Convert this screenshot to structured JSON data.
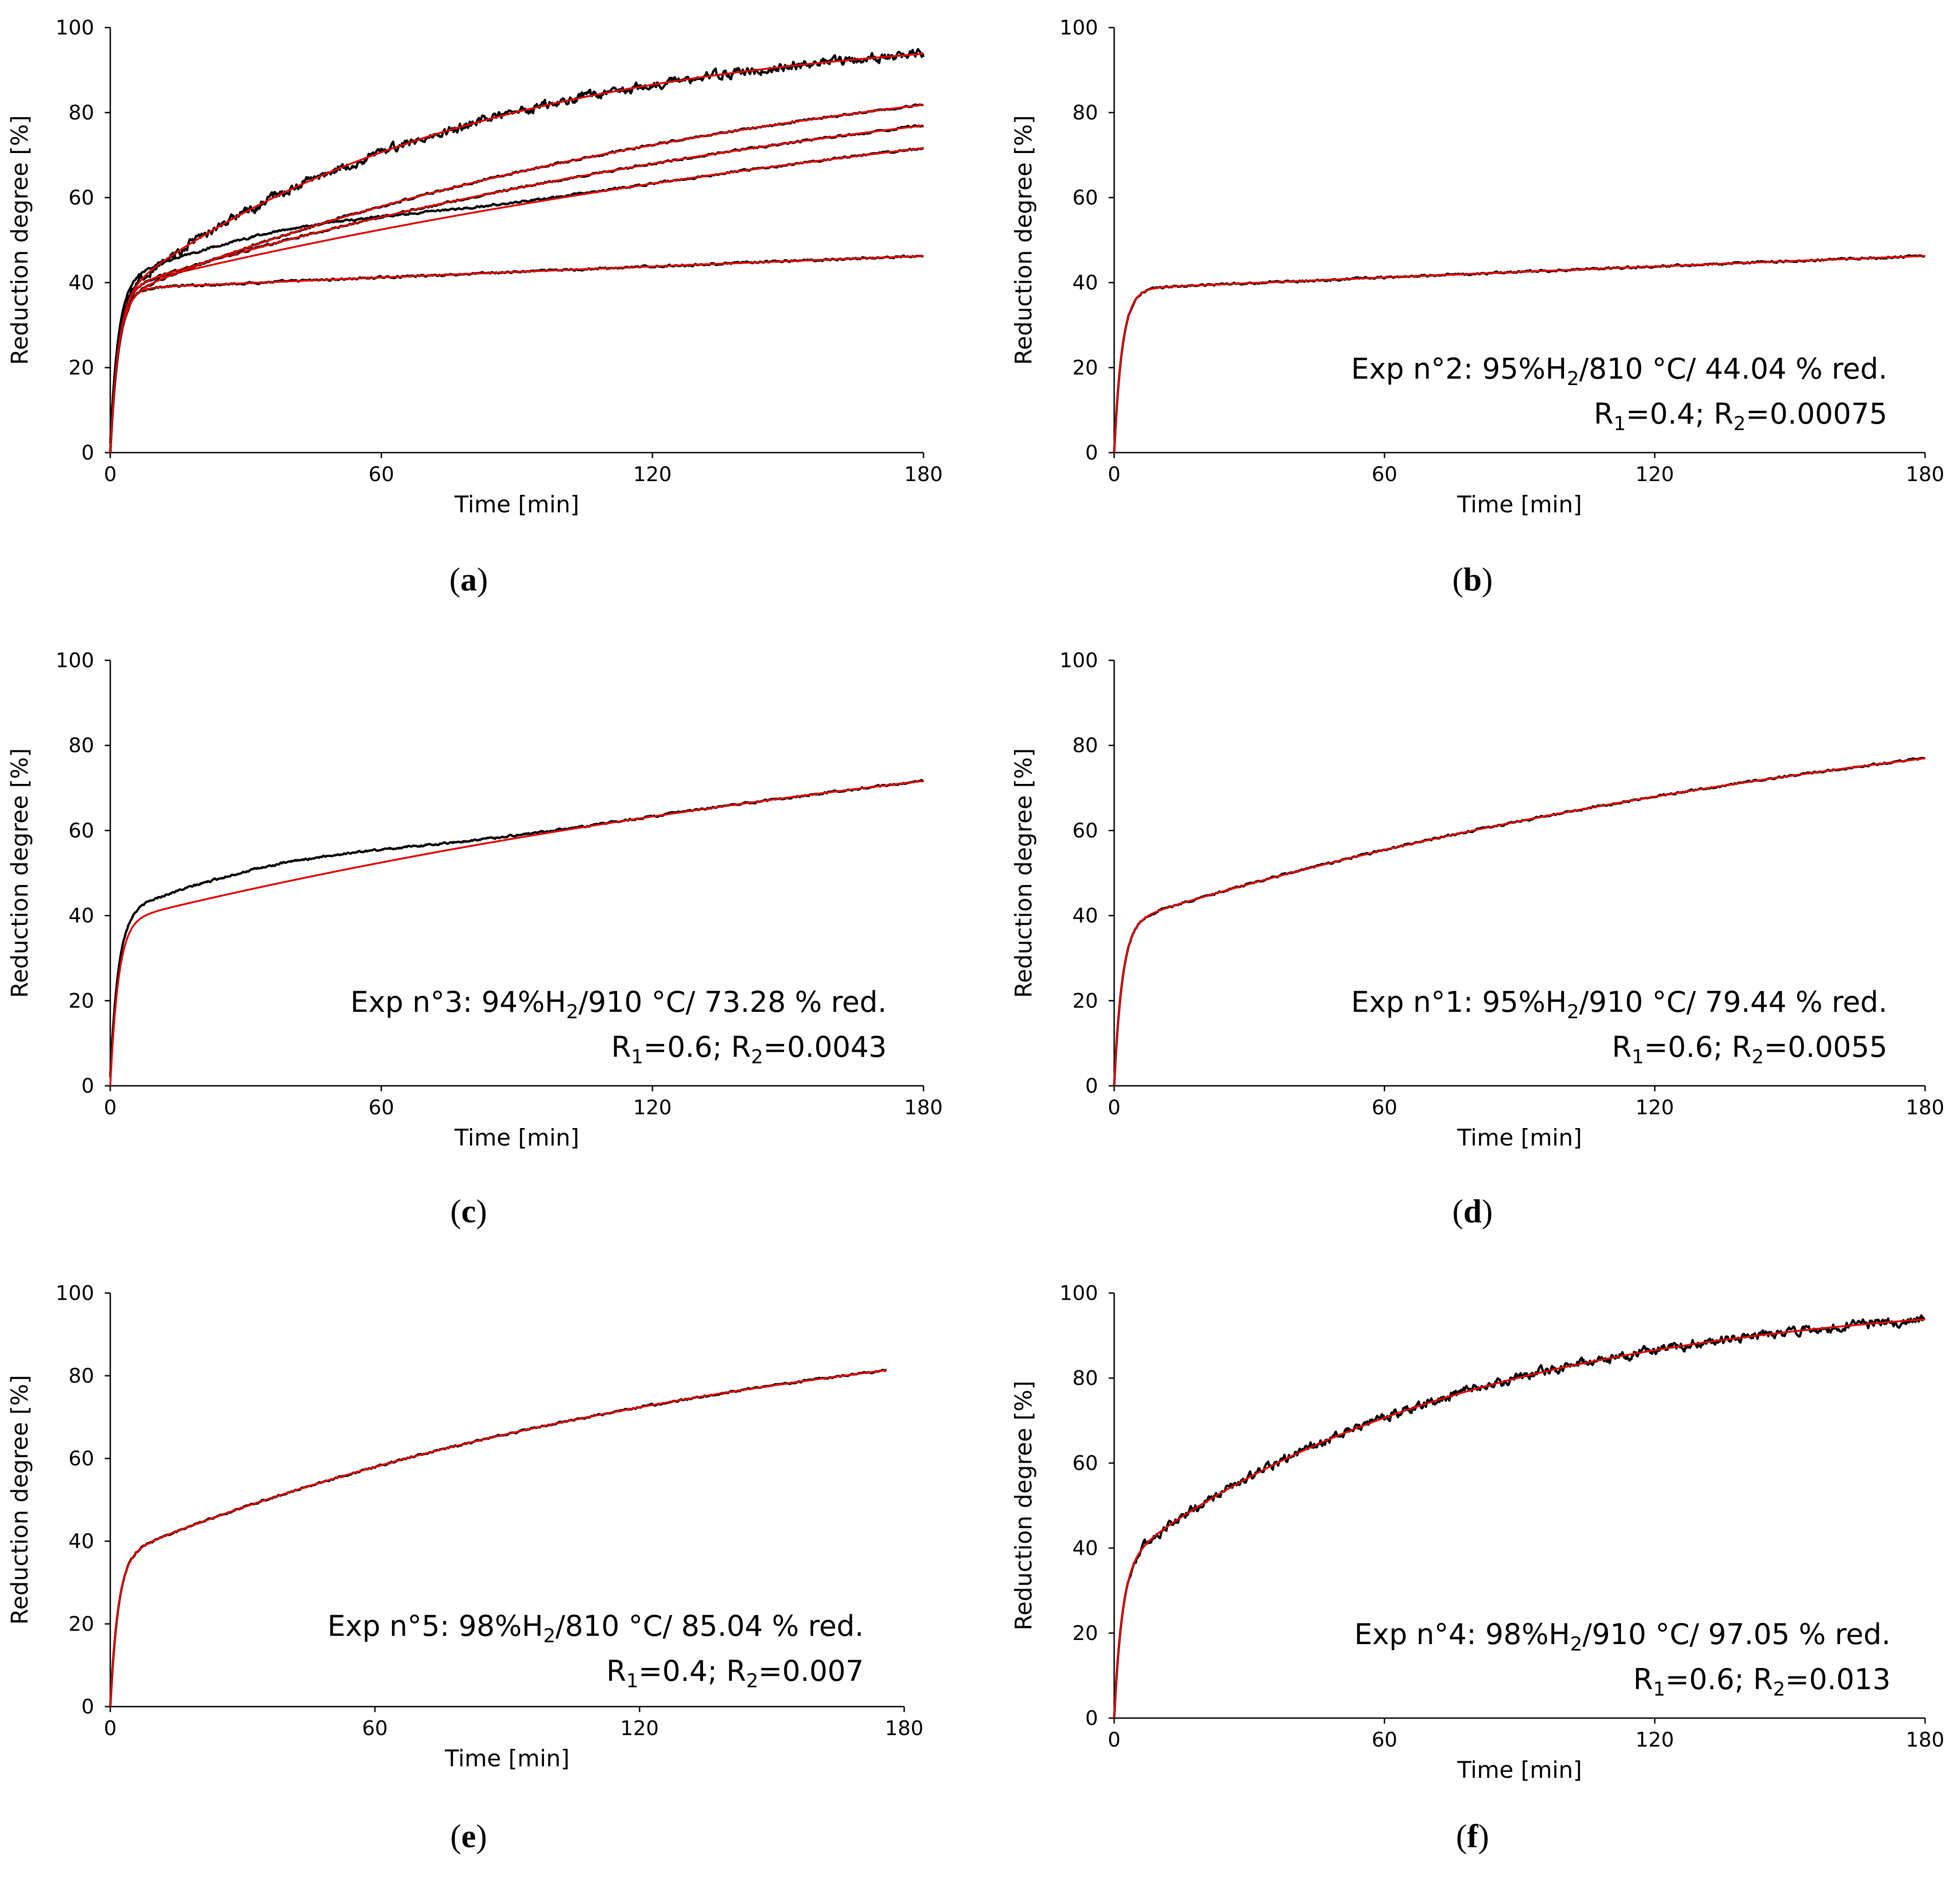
{
  "chart_data": [
    {
      "id": "a",
      "type": "line",
      "panel_label": "a",
      "xlabel": "Time [min]",
      "ylabel": "Reduction degree [%]",
      "xlim": [
        0,
        180
      ],
      "ylim": [
        0,
        100
      ],
      "xticks": [
        "0",
        "60",
        "120",
        "180"
      ],
      "yticks": [
        "0",
        "20",
        "40",
        "60",
        "80",
        "100"
      ],
      "annotation": null,
      "series": [
        {
          "name": "Exp n°2",
          "R1": 0.4,
          "R2": 0.00075,
          "A": 38.5,
          "x_end": 180
        },
        {
          "name": "Exp n°3",
          "R1": 0.6,
          "R2": 0.0043,
          "A": 38.5,
          "x_end": 180
        },
        {
          "name": "Exp n°1",
          "R1": 0.6,
          "R2": 0.0055,
          "A": 38.0,
          "x_end": 180
        },
        {
          "name": "Exp n°5",
          "R1": 0.4,
          "R2": 0.007,
          "A": 36.0,
          "x_end": 180
        },
        {
          "name": "Exp n°4",
          "R1": 0.6,
          "R2": 0.013,
          "A": 36.0,
          "x_end": 180
        }
      ]
    },
    {
      "id": "b",
      "type": "line",
      "panel_label": "b",
      "xlabel": "Time [min]",
      "ylabel": "Reduction degree [%]",
      "xlim": [
        0,
        180
      ],
      "ylim": [
        0,
        100
      ],
      "xticks": [
        "0",
        "60",
        "120",
        "180"
      ],
      "yticks": [
        "0",
        "20",
        "40",
        "60",
        "80",
        "100"
      ],
      "annotation": {
        "prefix": "Exp n°2:  95%H",
        "sub": "2",
        "suffix": "/810 °C/ 44.04 % red.",
        "r1": "0.4",
        "r2": "0.00075"
      },
      "series": [
        {
          "name": "Exp n°2",
          "R1": 0.4,
          "R2": 0.00075,
          "A": 38.5,
          "x_end": 180
        }
      ]
    },
    {
      "id": "c",
      "type": "line",
      "panel_label": "c",
      "xlabel": "Time [min]",
      "ylabel": "Reduction degree [%]",
      "xlim": [
        0,
        180
      ],
      "ylim": [
        0,
        100
      ],
      "xticks": [
        "0",
        "60",
        "120",
        "180"
      ],
      "yticks": [
        "0",
        "20",
        "40",
        "60",
        "80",
        "100"
      ],
      "annotation": {
        "prefix": "Exp n°3: 94%H",
        "sub": "2",
        "suffix": "/910 °C/ 73.28 % red.",
        "r1": "0.6",
        "r2": "0.0043"
      },
      "series": [
        {
          "name": "Exp n°3",
          "R1": 0.6,
          "R2": 0.0043,
          "A": 38.5,
          "x_end": 180
        }
      ]
    },
    {
      "id": "d",
      "type": "line",
      "panel_label": "d",
      "xlabel": "Time [min]",
      "ylabel": "Reduction degree [%]",
      "xlim": [
        0,
        180
      ],
      "ylim": [
        0,
        100
      ],
      "xticks": [
        "0",
        "60",
        "120",
        "180"
      ],
      "yticks": [
        "0",
        "20",
        "40",
        "60",
        "80",
        "100"
      ],
      "annotation": {
        "prefix": "Exp n°1: 95%H",
        "sub": "2",
        "suffix": "/910 °C/ 79.44 % red.",
        "r1": "0.6",
        "r2": "0.0055"
      },
      "series": [
        {
          "name": "Exp n°1",
          "R1": 0.6,
          "R2": 0.0055,
          "A": 38.0,
          "x_end": 180
        }
      ]
    },
    {
      "id": "e",
      "type": "line",
      "panel_label": "e",
      "xlabel": "Time [min]",
      "ylabel": "Reduction degree [%]",
      "xlim": [
        0,
        180
      ],
      "ylim": [
        0,
        100
      ],
      "xticks": [
        "0",
        "60",
        "120",
        "180"
      ],
      "yticks": [
        "0",
        "20",
        "40",
        "60",
        "80",
        "100"
      ],
      "annotation": {
        "prefix": "Exp n°5: 98%H",
        "sub": "2",
        "suffix": "/810 °C/ 85.04 % red.",
        "r1": "0.4",
        "r2": "0.007"
      },
      "series": [
        {
          "name": "Exp n°5",
          "R1": 0.4,
          "R2": 0.007,
          "A": 36.0,
          "x_end": 176
        }
      ]
    },
    {
      "id": "f",
      "type": "line",
      "panel_label": "f",
      "xlabel": "Time [min]",
      "ylabel": "Reduction degree [%]",
      "xlim": [
        0,
        180
      ],
      "ylim": [
        0,
        100
      ],
      "xticks": [
        "0",
        "60",
        "120",
        "180"
      ],
      "yticks": [
        "0",
        "20",
        "40",
        "60",
        "80",
        "100"
      ],
      "annotation": {
        "prefix": "Exp n°4: 98%H",
        "sub": "2",
        "suffix": "/910 °C/ 97.05 % red.",
        "r1": "0.6",
        "r2": "0.013"
      },
      "series": [
        {
          "name": "Exp n°4",
          "R1": 0.6,
          "R2": 0.013,
          "A": 36.0,
          "x_end": 180
        }
      ]
    }
  ],
  "colors": {
    "experimental": "#000000",
    "model_fit": "#e00000"
  }
}
